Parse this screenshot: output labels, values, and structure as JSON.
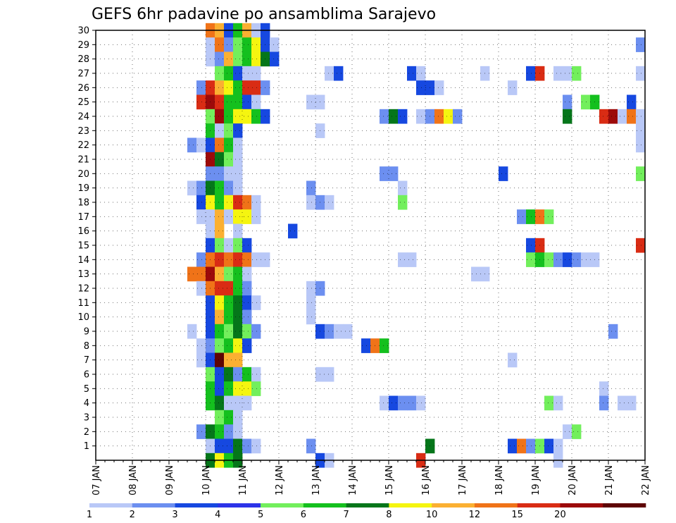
{
  "chart_data": {
    "type": "heatmap",
    "title": "GEFS 6hr padavine po ansamblima Sarajevo",
    "xlabel": "",
    "ylabel": "",
    "x_tick_labels": [
      "07 JAN",
      "08 JAN",
      "09 JAN",
      "10 JAN",
      "11 JAN",
      "12 JAN",
      "13 JAN",
      "14 JAN",
      "15 JAN",
      "16 JAN",
      "17 JAN",
      "18 JAN",
      "19 JAN",
      "20 JAN",
      "21 JAN",
      "22 JAN"
    ],
    "y_tick_labels": [
      "1",
      "2",
      "3",
      "4",
      "5",
      "6",
      "7",
      "8",
      "9",
      "10",
      "11",
      "12",
      "13",
      "14",
      "15",
      "16",
      "17",
      "18",
      "19",
      "20",
      "21",
      "22",
      "23",
      "24",
      "25",
      "26",
      "27",
      "28",
      "29",
      "30"
    ],
    "x_range_days": [
      0,
      15
    ],
    "y_range": [
      0,
      30
    ],
    "step_hours": 6,
    "grid": true,
    "legend_position": "bottom",
    "color_levels": [
      "1",
      "2",
      "3",
      "4",
      "5",
      "6",
      "7",
      "8",
      "10",
      "12",
      "15",
      "20"
    ],
    "colors": [
      "#b9c8f7",
      "#6c8ff0",
      "#1648e0",
      "#2c33e8",
      "#72ef5c",
      "#14c01e",
      "#05761a",
      "#f5f510",
      "#fbb032",
      "#f07318",
      "#d92c14",
      "#9c0a0a",
      "#5e0404"
    ],
    "cells_note": "each cell: [member, 6h step index from 07 JAN 00Z, color class 0-12]",
    "cells": [
      [
        30,
        12,
        9
      ],
      [
        30,
        13,
        8
      ],
      [
        30,
        14,
        2
      ],
      [
        30,
        15,
        5
      ],
      [
        30,
        16,
        8
      ],
      [
        30,
        17,
        0
      ],
      [
        30,
        18,
        2
      ],
      [
        29,
        12,
        0
      ],
      [
        29,
        13,
        9
      ],
      [
        29,
        14,
        1
      ],
      [
        29,
        15,
        4
      ],
      [
        29,
        16,
        5
      ],
      [
        29,
        17,
        7
      ],
      [
        29,
        18,
        2
      ],
      [
        29,
        19,
        0
      ],
      [
        29,
        59,
        1
      ],
      [
        28,
        12,
        0
      ],
      [
        28,
        13,
        1
      ],
      [
        28,
        14,
        8
      ],
      [
        28,
        15,
        4
      ],
      [
        28,
        16,
        5
      ],
      [
        28,
        17,
        7
      ],
      [
        28,
        18,
        6
      ],
      [
        28,
        19,
        2
      ],
      [
        27,
        13,
        4
      ],
      [
        27,
        14,
        5
      ],
      [
        27,
        15,
        2
      ],
      [
        27,
        16,
        0
      ],
      [
        27,
        17,
        0
      ],
      [
        27,
        25,
        0
      ],
      [
        27,
        26,
        2
      ],
      [
        27,
        34,
        2
      ],
      [
        27,
        35,
        0
      ],
      [
        27,
        42,
        0
      ],
      [
        27,
        47,
        2
      ],
      [
        27,
        48,
        10
      ],
      [
        27,
        50,
        0
      ],
      [
        27,
        51,
        0
      ],
      [
        27,
        52,
        4
      ],
      [
        27,
        59,
        0
      ],
      [
        26,
        11,
        1
      ],
      [
        26,
        12,
        10
      ],
      [
        26,
        13,
        8
      ],
      [
        26,
        14,
        7
      ],
      [
        26,
        15,
        5
      ],
      [
        26,
        16,
        10
      ],
      [
        26,
        17,
        10
      ],
      [
        26,
        18,
        1
      ],
      [
        26,
        35,
        2
      ],
      [
        26,
        36,
        2
      ],
      [
        26,
        37,
        0
      ],
      [
        26,
        45,
        0
      ],
      [
        25,
        11,
        10
      ],
      [
        25,
        12,
        11
      ],
      [
        25,
        13,
        10
      ],
      [
        25,
        14,
        5
      ],
      [
        25,
        15,
        5
      ],
      [
        25,
        16,
        2
      ],
      [
        25,
        17,
        0
      ],
      [
        25,
        23,
        0
      ],
      [
        25,
        24,
        0
      ],
      [
        25,
        51,
        1
      ],
      [
        25,
        53,
        4
      ],
      [
        25,
        54,
        5
      ],
      [
        25,
        58,
        2
      ],
      [
        24,
        12,
        4
      ],
      [
        24,
        13,
        11
      ],
      [
        24,
        14,
        5
      ],
      [
        24,
        15,
        7
      ],
      [
        24,
        16,
        7
      ],
      [
        24,
        17,
        5
      ],
      [
        24,
        18,
        2
      ],
      [
        24,
        31,
        1
      ],
      [
        24,
        32,
        6
      ],
      [
        24,
        33,
        2
      ],
      [
        24,
        35,
        0
      ],
      [
        24,
        36,
        1
      ],
      [
        24,
        37,
        9
      ],
      [
        24,
        38,
        7
      ],
      [
        24,
        39,
        1
      ],
      [
        24,
        51,
        6
      ],
      [
        24,
        55,
        10
      ],
      [
        24,
        56,
        11
      ],
      [
        24,
        57,
        0
      ],
      [
        24,
        58,
        9
      ],
      [
        24,
        59,
        0
      ],
      [
        23,
        12,
        5
      ],
      [
        23,
        13,
        0
      ],
      [
        23,
        14,
        4
      ],
      [
        23,
        15,
        2
      ],
      [
        23,
        24,
        0
      ],
      [
        23,
        59,
        0
      ],
      [
        22,
        10,
        1
      ],
      [
        22,
        11,
        0
      ],
      [
        22,
        12,
        2
      ],
      [
        22,
        13,
        9
      ],
      [
        22,
        14,
        5
      ],
      [
        22,
        15,
        0
      ],
      [
        22,
        59,
        0
      ],
      [
        21,
        12,
        11
      ],
      [
        21,
        13,
        6
      ],
      [
        21,
        14,
        4
      ],
      [
        21,
        15,
        0
      ],
      [
        20,
        12,
        1
      ],
      [
        20,
        13,
        1
      ],
      [
        20,
        14,
        0
      ],
      [
        20,
        15,
        0
      ],
      [
        20,
        31,
        1
      ],
      [
        20,
        32,
        1
      ],
      [
        20,
        44,
        2
      ],
      [
        20,
        59,
        4
      ],
      [
        19,
        10,
        0
      ],
      [
        19,
        11,
        1
      ],
      [
        19,
        12,
        6
      ],
      [
        19,
        13,
        5
      ],
      [
        19,
        14,
        1
      ],
      [
        19,
        15,
        0
      ],
      [
        19,
        23,
        1
      ],
      [
        19,
        33,
        0
      ],
      [
        18,
        11,
        2
      ],
      [
        18,
        12,
        7
      ],
      [
        18,
        13,
        5
      ],
      [
        18,
        14,
        7
      ],
      [
        18,
        15,
        10
      ],
      [
        18,
        16,
        9
      ],
      [
        18,
        17,
        0
      ],
      [
        18,
        23,
        0
      ],
      [
        18,
        24,
        1
      ],
      [
        18,
        25,
        0
      ],
      [
        18,
        33,
        4
      ],
      [
        17,
        11,
        0
      ],
      [
        17,
        12,
        0
      ],
      [
        17,
        13,
        8
      ],
      [
        17,
        14,
        0
      ],
      [
        17,
        15,
        7
      ],
      [
        17,
        16,
        7
      ],
      [
        17,
        17,
        0
      ],
      [
        17,
        46,
        1
      ],
      [
        17,
        47,
        5
      ],
      [
        17,
        48,
        9
      ],
      [
        17,
        49,
        4
      ],
      [
        16,
        12,
        0
      ],
      [
        16,
        13,
        8
      ],
      [
        16,
        15,
        0
      ],
      [
        16,
        21,
        2
      ],
      [
        15,
        12,
        2
      ],
      [
        15,
        13,
        4
      ],
      [
        15,
        14,
        0
      ],
      [
        15,
        15,
        4
      ],
      [
        15,
        16,
        2
      ],
      [
        15,
        47,
        2
      ],
      [
        15,
        48,
        10
      ],
      [
        15,
        59,
        10
      ],
      [
        14,
        11,
        1
      ],
      [
        14,
        12,
        9
      ],
      [
        14,
        13,
        10
      ],
      [
        14,
        14,
        9
      ],
      [
        14,
        15,
        10
      ],
      [
        14,
        16,
        9
      ],
      [
        14,
        17,
        0
      ],
      [
        14,
        18,
        0
      ],
      [
        14,
        33,
        0
      ],
      [
        14,
        34,
        0
      ],
      [
        14,
        47,
        4
      ],
      [
        14,
        48,
        5
      ],
      [
        14,
        49,
        4
      ],
      [
        14,
        50,
        1
      ],
      [
        14,
        51,
        2
      ],
      [
        14,
        52,
        1
      ],
      [
        14,
        53,
        0
      ],
      [
        14,
        54,
        0
      ],
      [
        13,
        10,
        9
      ],
      [
        13,
        11,
        9
      ],
      [
        13,
        12,
        11
      ],
      [
        13,
        13,
        8
      ],
      [
        13,
        14,
        4
      ],
      [
        13,
        15,
        5
      ],
      [
        13,
        16,
        0
      ],
      [
        13,
        41,
        0
      ],
      [
        13,
        42,
        0
      ],
      [
        12,
        11,
        0
      ],
      [
        12,
        12,
        9
      ],
      [
        12,
        13,
        10
      ],
      [
        12,
        14,
        10
      ],
      [
        12,
        15,
        5
      ],
      [
        12,
        16,
        1
      ],
      [
        12,
        23,
        0
      ],
      [
        12,
        24,
        1
      ],
      [
        11,
        12,
        2
      ],
      [
        11,
        13,
        7
      ],
      [
        11,
        14,
        5
      ],
      [
        11,
        15,
        6
      ],
      [
        11,
        16,
        2
      ],
      [
        11,
        17,
        0
      ],
      [
        11,
        23,
        0
      ],
      [
        10,
        12,
        2
      ],
      [
        10,
        13,
        8
      ],
      [
        10,
        14,
        5
      ],
      [
        10,
        15,
        6
      ],
      [
        10,
        16,
        1
      ],
      [
        10,
        23,
        0
      ],
      [
        9,
        10,
        0
      ],
      [
        9,
        12,
        2
      ],
      [
        9,
        13,
        5
      ],
      [
        9,
        14,
        4
      ],
      [
        9,
        15,
        6
      ],
      [
        9,
        16,
        4
      ],
      [
        9,
        17,
        1
      ],
      [
        9,
        24,
        2
      ],
      [
        9,
        25,
        1
      ],
      [
        9,
        26,
        0
      ],
      [
        9,
        27,
        0
      ],
      [
        9,
        56,
        1
      ],
      [
        8,
        11,
        0
      ],
      [
        8,
        12,
        1
      ],
      [
        8,
        13,
        4
      ],
      [
        8,
        14,
        5
      ],
      [
        8,
        15,
        7
      ],
      [
        8,
        16,
        2
      ],
      [
        8,
        29,
        2
      ],
      [
        8,
        30,
        9
      ],
      [
        8,
        31,
        5
      ],
      [
        7,
        11,
        0
      ],
      [
        7,
        12,
        2
      ],
      [
        7,
        13,
        12
      ],
      [
        7,
        14,
        8
      ],
      [
        7,
        15,
        8
      ],
      [
        7,
        45,
        0
      ],
      [
        6,
        12,
        4
      ],
      [
        6,
        13,
        2
      ],
      [
        6,
        14,
        6
      ],
      [
        6,
        15,
        1
      ],
      [
        6,
        16,
        5
      ],
      [
        6,
        17,
        0
      ],
      [
        6,
        24,
        0
      ],
      [
        6,
        25,
        0
      ],
      [
        5,
        12,
        5
      ],
      [
        5,
        13,
        2
      ],
      [
        5,
        14,
        5
      ],
      [
        5,
        15,
        7
      ],
      [
        5,
        16,
        7
      ],
      [
        5,
        17,
        4
      ],
      [
        5,
        55,
        0
      ],
      [
        4,
        12,
        5
      ],
      [
        4,
        13,
        6
      ],
      [
        4,
        14,
        0
      ],
      [
        4,
        15,
        0
      ],
      [
        4,
        16,
        0
      ],
      [
        4,
        31,
        0
      ],
      [
        4,
        32,
        2
      ],
      [
        4,
        33,
        1
      ],
      [
        4,
        34,
        1
      ],
      [
        4,
        35,
        0
      ],
      [
        4,
        49,
        4
      ],
      [
        4,
        50,
        0
      ],
      [
        4,
        55,
        1
      ],
      [
        4,
        57,
        0
      ],
      [
        4,
        58,
        0
      ],
      [
        3,
        13,
        4
      ],
      [
        3,
        14,
        5
      ],
      [
        3,
        15,
        0
      ],
      [
        2,
        11,
        1
      ],
      [
        2,
        12,
        6
      ],
      [
        2,
        13,
        5
      ],
      [
        2,
        14,
        1
      ],
      [
        2,
        15,
        0
      ],
      [
        2,
        51,
        0
      ],
      [
        2,
        52,
        4
      ],
      [
        1,
        12,
        0
      ],
      [
        1,
        13,
        2
      ],
      [
        1,
        14,
        2
      ],
      [
        1,
        15,
        6
      ],
      [
        1,
        16,
        1
      ],
      [
        1,
        17,
        0
      ],
      [
        1,
        23,
        1
      ],
      [
        1,
        36,
        6
      ],
      [
        1,
        45,
        2
      ],
      [
        1,
        46,
        9
      ],
      [
        1,
        47,
        1
      ],
      [
        1,
        48,
        4
      ],
      [
        1,
        49,
        2
      ],
      [
        1,
        50,
        0
      ],
      [
        0,
        12,
        6
      ],
      [
        0,
        13,
        7
      ],
      [
        0,
        14,
        5
      ],
      [
        0,
        15,
        6
      ],
      [
        0,
        24,
        2
      ],
      [
        0,
        25,
        0
      ],
      [
        0,
        35,
        10
      ],
      [
        0,
        50,
        0
      ]
    ]
  }
}
